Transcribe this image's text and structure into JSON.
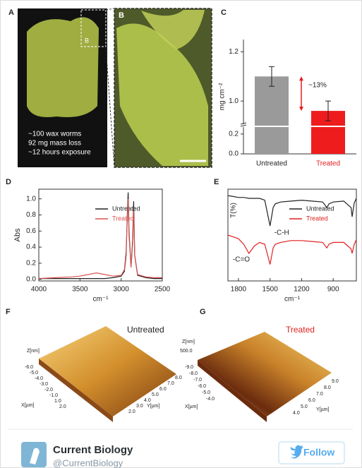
{
  "figure": {
    "panel_a": {
      "label": "A",
      "inset_label": "B",
      "caption": [
        "~100 wax worms",
        "92 mg mass loss",
        "~12 hours exposure"
      ]
    },
    "panel_b": {
      "label": "B"
    },
    "panel_f": {
      "label": "F",
      "title": "Untreated",
      "z_label": "Z[nm]",
      "x_label": "X[µm]",
      "y_label": "Y[µm]",
      "x_ticks": [
        "-6.0",
        "-5.0",
        "-4.0",
        "-3.0",
        "-2.0",
        "-1.0",
        "1.0",
        "2.0"
      ],
      "y_ticks": [
        "8.0",
        "7.0",
        "6.0",
        "5.0",
        "4.0",
        "3.0",
        "2.0"
      ]
    },
    "panel_g": {
      "label": "G",
      "title": "Treated",
      "z_label": "Z[nm]",
      "z_tick": "500.0",
      "x_label": "X[µm]",
      "y_label": "Y[µm]",
      "x_ticks": [
        "-9.0",
        "-8.0",
        "-7.0",
        "-6.0",
        "-5.0",
        "-4.0"
      ],
      "y_ticks": [
        "9.0",
        "8.0",
        "7.0",
        "6.0",
        "5.0",
        "4.0"
      ]
    }
  },
  "chart_data": [
    {
      "type": "bar",
      "label": "C",
      "ylabel": "mg cm⁻²",
      "categories": [
        "Untreated",
        "Treated"
      ],
      "values": [
        1.1,
        0.96
      ],
      "errors": [
        0.04,
        0.04
      ],
      "colors": [
        "#9a9a9a",
        "#ee1c1c"
      ],
      "category_colors": [
        "#222222",
        "#e0201f"
      ],
      "ylim": [
        0,
        1.25
      ],
      "axis_break": [
        0.27,
        0.9
      ],
      "yticks": [
        {
          "value": 0,
          "label": "0.0"
        },
        0.2,
        {
          "value": 1,
          "label": "1.0"
        },
        1.2
      ],
      "annotation": "~13%"
    },
    {
      "type": "line",
      "label": "D",
      "ylabel": "Abs",
      "xlabel": "cm⁻¹",
      "legend": "upper right",
      "x": [
        4000,
        3800,
        3600,
        3500,
        3400,
        3300,
        3200,
        3100,
        3000,
        2960,
        2940,
        2925,
        2915,
        2905,
        2880,
        2860,
        2848,
        2835,
        2800,
        2700,
        2600,
        2500
      ],
      "series": [
        {
          "name": "Untreated",
          "color": "#222222",
          "values": [
            0.01,
            0.01,
            0.01,
            0.01,
            0.01,
            0.01,
            0.01,
            0.02,
            0.04,
            0.1,
            0.3,
            0.8,
            1.08,
            0.6,
            0.15,
            0.5,
            0.97,
            0.3,
            0.05,
            0.02,
            0.01,
            0.01
          ]
        },
        {
          "name": "Treated",
          "color": "#d9534f",
          "values": [
            0.01,
            0.02,
            0.03,
            0.04,
            0.06,
            0.08,
            0.06,
            0.04,
            0.05,
            0.12,
            0.35,
            0.75,
            1.0,
            0.55,
            0.15,
            0.45,
            0.85,
            0.3,
            0.06,
            0.03,
            0.02,
            0.02
          ]
        }
      ],
      "xlim": [
        4000,
        2500
      ],
      "xticks": [
        4000,
        3500,
        3000,
        2500
      ],
      "ylim": [
        -0.02,
        1.12
      ],
      "yticks": [
        {
          "value": 0,
          "label": "0.0"
        },
        0.2,
        0.4,
        0.6,
        0.8,
        {
          "value": 1,
          "label": "1.0"
        }
      ]
    },
    {
      "type": "line",
      "label": "E",
      "ylabel": "T(%)",
      "xlabel": "cm⁻¹",
      "legend": "upper right",
      "x": [
        1900,
        1850,
        1800,
        1750,
        1700,
        1650,
        1600,
        1550,
        1500,
        1470,
        1450,
        1400,
        1300,
        1200,
        1100,
        1000,
        960,
        940,
        900,
        800,
        730,
        720,
        700,
        680
      ],
      "series": [
        {
          "name": "Untreated",
          "color": "#222222",
          "values": [
            0.93,
            0.92,
            0.91,
            0.91,
            0.9,
            0.9,
            0.9,
            0.88,
            0.6,
            0.8,
            0.84,
            0.86,
            0.87,
            0.88,
            0.87,
            0.86,
            0.8,
            0.84,
            0.86,
            0.87,
            0.8,
            0.7,
            0.85,
            0.9
          ]
        },
        {
          "name": "Treated",
          "color": "#e0201f",
          "values": [
            0.5,
            0.48,
            0.46,
            0.4,
            0.3,
            0.38,
            0.42,
            0.4,
            0.18,
            0.36,
            0.4,
            0.42,
            0.44,
            0.44,
            0.43,
            0.42,
            0.36,
            0.4,
            0.42,
            0.42,
            0.35,
            0.3,
            0.4,
            0.45
          ]
        }
      ],
      "xlim": [
        1900,
        680
      ],
      "xticks": [
        1800,
        1500,
        1200,
        900
      ],
      "ylim": [
        0,
        1
      ],
      "annotations": [
        "-C-H",
        "-C=O"
      ]
    }
  ],
  "tweet": {
    "account_name": "Current Biology",
    "handle": "@CurrentBiology",
    "button": "Follow"
  }
}
